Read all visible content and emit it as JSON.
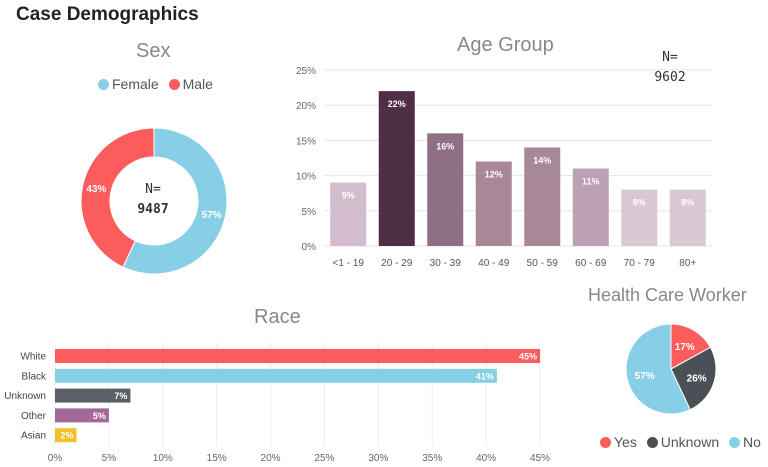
{
  "page_title": "Case Demographics",
  "chart_data": [
    {
      "type": "pie",
      "variant": "donut",
      "title": "Sex",
      "n_label": "N=",
      "n_value": "9487",
      "legend_position": "top",
      "slices": [
        {
          "name": "Female",
          "value": 57,
          "label": "57%",
          "color": "#87cfe6"
        },
        {
          "name": "Male",
          "value": 43,
          "label": "43%",
          "color": "#fc5c5c"
        }
      ]
    },
    {
      "type": "bar",
      "title": "Age Group",
      "n_label": "N=",
      "n_value": "9602",
      "categories": [
        "<1 - 19",
        "20 - 29",
        "30 - 39",
        "40 - 49",
        "50 - 59",
        "60 - 69",
        "70 - 79",
        "80+"
      ],
      "values": [
        9,
        22,
        16,
        12,
        14,
        11,
        8,
        8
      ],
      "value_labels": [
        "9%",
        "22%",
        "16%",
        "12%",
        "14%",
        "11%",
        "8%",
        "8%"
      ],
      "colors": [
        "#d3bccc",
        "#4f2f45",
        "#8e6f84",
        "#a88799",
        "#a88799",
        "#bca0b3",
        "#d9c7d3",
        "#d9c7d3"
      ],
      "yticks": [
        "0%",
        "5%",
        "10%",
        "15%",
        "20%",
        "25%"
      ],
      "ylim": [
        0,
        25
      ],
      "grid": true
    },
    {
      "type": "bar",
      "orientation": "horizontal",
      "title": "Race",
      "categories": [
        "White",
        "Black",
        "Unknown",
        "Other",
        "Asian"
      ],
      "values": [
        45,
        41,
        7,
        5,
        2
      ],
      "value_labels": [
        "45%",
        "41%",
        "7%",
        "5%",
        "2%"
      ],
      "colors": [
        "#fc5c5c",
        "#87cfe6",
        "#5a6066",
        "#a4699b",
        "#f3c02c"
      ],
      "xticks": [
        "0%",
        "5%",
        "10%",
        "15%",
        "20%",
        "25%",
        "30%",
        "35%",
        "40%",
        "45%"
      ],
      "xlim": [
        0,
        45
      ],
      "grid": true
    },
    {
      "type": "pie",
      "title": "Health Care Worker",
      "legend_position": "bottom",
      "slices": [
        {
          "name": "Yes",
          "value": 17,
          "label": "17%",
          "color": "#fc5c5c"
        },
        {
          "name": "Unknown",
          "value": 26,
          "label": "26%",
          "color": "#4b5056"
        },
        {
          "name": "No",
          "value": 57,
          "label": "57%",
          "color": "#87cfe6"
        }
      ]
    }
  ]
}
